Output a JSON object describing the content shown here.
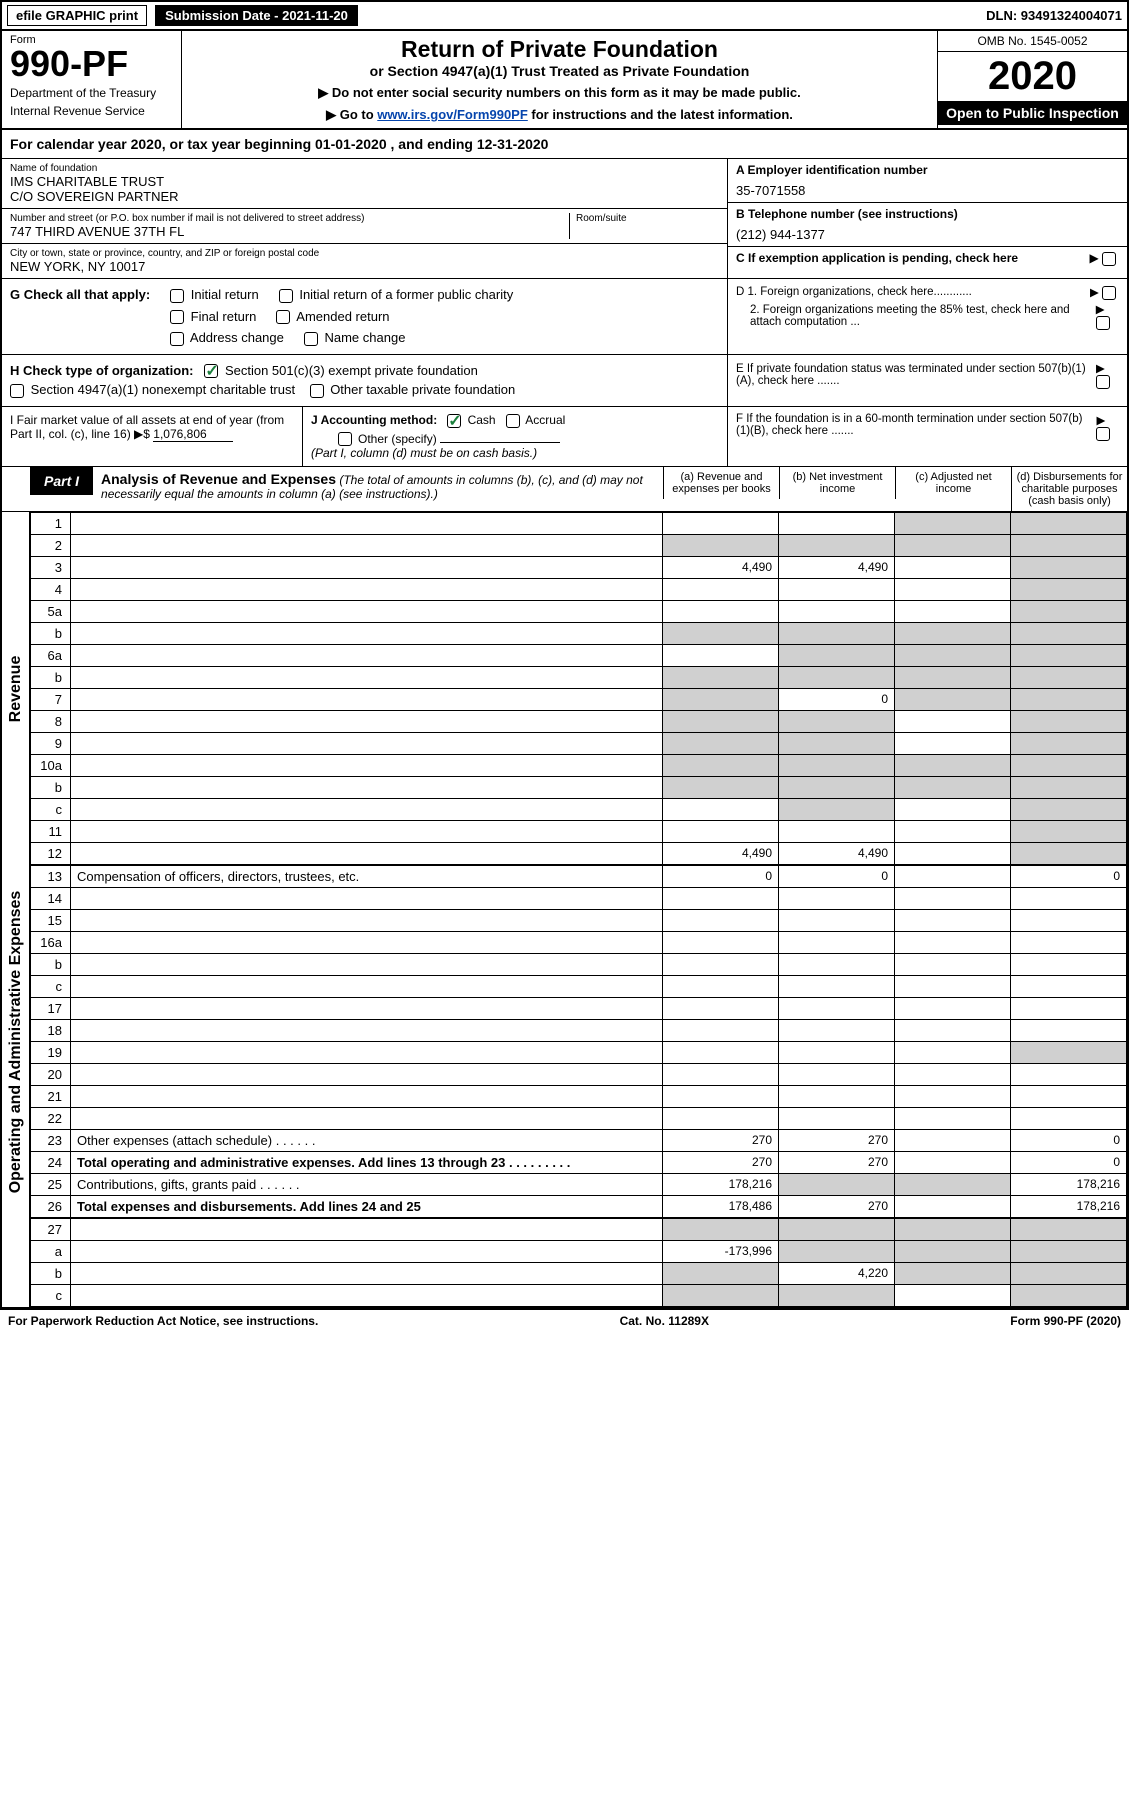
{
  "top": {
    "efile": "efile GRAPHIC print",
    "submission": "Submission Date - 2021-11-20",
    "dln": "DLN: 93491324004071"
  },
  "header": {
    "form_label": "Form",
    "form_no": "990-PF",
    "dept1": "Department of the Treasury",
    "dept2": "Internal Revenue Service",
    "title": "Return of Private Foundation",
    "sub1": "or Section 4947(a)(1) Trust Treated as Private Foundation",
    "sub2a": "▶ Do not enter social security numbers on this form as it may be made public.",
    "sub2b": "▶ Go to ",
    "link": "www.irs.gov/Form990PF",
    "sub2c": " for instructions and the latest information.",
    "omb": "OMB No. 1545-0052",
    "year": "2020",
    "inspection": "Open to Public Inspection"
  },
  "cal_year": "For calendar year 2020, or tax year beginning 01-01-2020            , and ending 12-31-2020",
  "entity": {
    "name_label": "Name of foundation",
    "name1": "IMS CHARITABLE TRUST",
    "name2": "C/O SOVEREIGN PARTNER",
    "addr_label": "Number and street (or P.O. box number if mail is not delivered to street address)",
    "addr": "747 THIRD AVENUE 37TH FL",
    "room_label": "Room/suite",
    "city_label": "City or town, state or province, country, and ZIP or foreign postal code",
    "city": "NEW YORK, NY  10017",
    "A_label": "A Employer identification number",
    "A_val": "35-7071558",
    "B_label": "B Telephone number (see instructions)",
    "B_val": "(212) 944-1377",
    "C_label": "C If exemption application is pending, check here"
  },
  "G": {
    "label": "G Check all that apply:",
    "initial": "Initial return",
    "initial_former": "Initial return of a former public charity",
    "final": "Final return",
    "amended": "Amended return",
    "address": "Address change",
    "name_change": "Name change"
  },
  "H": {
    "label": "H Check type of organization:",
    "501c3": "Section 501(c)(3) exempt private foundation",
    "4947": "Section 4947(a)(1) nonexempt charitable trust",
    "other_tax": "Other taxable private foundation"
  },
  "D": {
    "D1": "D 1. Foreign organizations, check here............",
    "D2": "2. Foreign organizations meeting the 85% test, check here and attach computation ...",
    "E": "E  If private foundation status was terminated under section 507(b)(1)(A), check here .......",
    "F": "F  If the foundation is in a 60-month termination under section 507(b)(1)(B), check here ......."
  },
  "I": {
    "label": "I Fair market value of all assets at end of year (from Part II, col. (c), line 16) ▶$ ",
    "val": "1,076,806"
  },
  "J": {
    "label": "J Accounting method:",
    "cash": "Cash",
    "accrual": "Accrual",
    "other": "Other (specify)",
    "note": "(Part I, column (d) must be on cash basis.)"
  },
  "partI": {
    "label": "Part I",
    "title": "Analysis of Revenue and Expenses",
    "note": " (The total of amounts in columns (b), (c), and (d) may not necessarily equal the amounts in column (a) (see instructions).)",
    "col_a": "(a) Revenue and expenses per books",
    "col_b": "(b) Net investment income",
    "col_c": "(c) Adjusted net income",
    "col_d": "(d) Disbursements for charitable purposes (cash basis only)"
  },
  "side_labels": {
    "revenue": "Revenue",
    "expenses": "Operating and Administrative Expenses"
  },
  "rows": [
    {
      "n": "1",
      "d": "",
      "a": "",
      "b": "",
      "c": "",
      "grey_c": true,
      "grey_d": true
    },
    {
      "n": "2",
      "d": "",
      "a": "",
      "b": "",
      "c": "",
      "grey_a": true,
      "grey_b": true,
      "grey_c": true,
      "grey_d": true
    },
    {
      "n": "3",
      "d": "",
      "a": "4,490",
      "b": "4,490",
      "c": "",
      "grey_d": true
    },
    {
      "n": "4",
      "d": "",
      "a": "",
      "b": "",
      "c": "",
      "grey_d": true
    },
    {
      "n": "5a",
      "d": "",
      "a": "",
      "b": "",
      "c": "",
      "grey_d": true
    },
    {
      "n": "b",
      "d": "",
      "a": "",
      "b": "",
      "c": "",
      "grey_a": true,
      "grey_b": true,
      "grey_c": true,
      "grey_d": true
    },
    {
      "n": "6a",
      "d": "",
      "a": "",
      "b": "",
      "c": "",
      "grey_b": true,
      "grey_c": true,
      "grey_d": true
    },
    {
      "n": "b",
      "d": "",
      "a": "",
      "b": "",
      "c": "",
      "grey_a": true,
      "grey_b": true,
      "grey_c": true,
      "grey_d": true
    },
    {
      "n": "7",
      "d": "",
      "a": "",
      "b": "0",
      "c": "",
      "grey_a": true,
      "grey_c": true,
      "grey_d": true
    },
    {
      "n": "8",
      "d": "",
      "a": "",
      "b": "",
      "c": "",
      "grey_a": true,
      "grey_b": true,
      "grey_d": true
    },
    {
      "n": "9",
      "d": "",
      "a": "",
      "b": "",
      "c": "",
      "grey_a": true,
      "grey_b": true,
      "grey_d": true
    },
    {
      "n": "10a",
      "d": "",
      "a": "",
      "b": "",
      "c": "",
      "grey_a": true,
      "grey_b": true,
      "grey_c": true,
      "grey_d": true
    },
    {
      "n": "b",
      "d": "",
      "a": "",
      "b": "",
      "c": "",
      "grey_a": true,
      "grey_b": true,
      "grey_c": true,
      "grey_d": true
    },
    {
      "n": "c",
      "d": "",
      "a": "",
      "b": "",
      "c": "",
      "grey_b": true,
      "grey_d": true
    },
    {
      "n": "11",
      "d": "",
      "a": "",
      "b": "",
      "c": "",
      "grey_d": true
    },
    {
      "n": "12",
      "d": "",
      "a": "4,490",
      "b": "4,490",
      "c": "",
      "bold": true,
      "grey_d": true
    }
  ],
  "exp_rows": [
    {
      "n": "13",
      "d": "0",
      "a": "0",
      "b": "0",
      "c": ""
    },
    {
      "n": "14",
      "d": "",
      "a": "",
      "b": "",
      "c": ""
    },
    {
      "n": "15",
      "d": "",
      "a": "",
      "b": "",
      "c": ""
    },
    {
      "n": "16a",
      "d": "",
      "a": "",
      "b": "",
      "c": ""
    },
    {
      "n": "b",
      "d": "",
      "a": "",
      "b": "",
      "c": ""
    },
    {
      "n": "c",
      "d": "",
      "a": "",
      "b": "",
      "c": ""
    },
    {
      "n": "17",
      "d": "",
      "a": "",
      "b": "",
      "c": ""
    },
    {
      "n": "18",
      "d": "",
      "a": "",
      "b": "",
      "c": ""
    },
    {
      "n": "19",
      "d": "",
      "a": "",
      "b": "",
      "c": "",
      "grey_d": true
    },
    {
      "n": "20",
      "d": "",
      "a": "",
      "b": "",
      "c": ""
    },
    {
      "n": "21",
      "d": "",
      "a": "",
      "b": "",
      "c": ""
    },
    {
      "n": "22",
      "d": "",
      "a": "",
      "b": "",
      "c": ""
    },
    {
      "n": "23",
      "d": "0",
      "a": "270",
      "b": "270",
      "c": ""
    },
    {
      "n": "24",
      "d": "0",
      "a": "270",
      "b": "270",
      "c": "",
      "bold": true
    },
    {
      "n": "25",
      "d": "178,216",
      "a": "178,216",
      "b": "",
      "c": "",
      "grey_b": true,
      "grey_c": true
    },
    {
      "n": "26",
      "d": "178,216",
      "a": "178,486",
      "b": "270",
      "c": "",
      "bold": true
    }
  ],
  "bottom_rows": [
    {
      "n": "27",
      "d": "",
      "a": "",
      "b": "",
      "c": "",
      "grey_a": true,
      "grey_b": true,
      "grey_c": true,
      "grey_d": true
    },
    {
      "n": "a",
      "d": "",
      "a": "-173,996",
      "b": "",
      "c": "",
      "bold": true,
      "grey_b": true,
      "grey_c": true,
      "grey_d": true
    },
    {
      "n": "b",
      "d": "",
      "a": "",
      "b": "4,220",
      "c": "",
      "bold": true,
      "grey_a": true,
      "grey_c": true,
      "grey_d": true
    },
    {
      "n": "c",
      "d": "",
      "a": "",
      "b": "",
      "c": "",
      "bold": true,
      "grey_a": true,
      "grey_b": true,
      "grey_d": true
    }
  ],
  "footer": {
    "left": "For Paperwork Reduction Act Notice, see instructions.",
    "center": "Cat. No. 11289X",
    "right": "Form 990-PF (2020)"
  }
}
